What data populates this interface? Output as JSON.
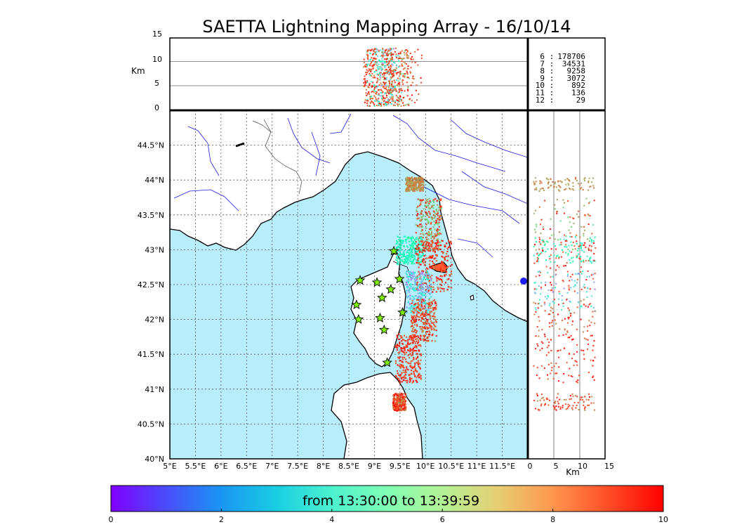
{
  "chart_data": {
    "type": "scatter",
    "title": "SAETTA Lightning Mapping Array - 16/10/14",
    "map": {
      "lon_ticks": [
        "5°E",
        "5.5°E",
        "6°E",
        "6.5°E",
        "7°E",
        "7.5°E",
        "8°E",
        "8.5°E",
        "9°E",
        "9.5°E",
        "10°E",
        "10.5°E",
        "11°E",
        "11.5°E"
      ],
      "lat_ticks": [
        "40°N",
        "40.5°N",
        "41°N",
        "41.5°N",
        "42°N",
        "42.5°N",
        "43°N",
        "43.5°N",
        "44°N",
        "44.5°N"
      ],
      "lon_range": [
        5,
        12
      ],
      "lat_range": [
        40,
        45
      ],
      "stations": [
        {
          "lon": 9.38,
          "lat": 42.98
        },
        {
          "lon": 8.72,
          "lat": 42.56
        },
        {
          "lon": 9.05,
          "lat": 42.53
        },
        {
          "lon": 9.49,
          "lat": 42.58
        },
        {
          "lon": 9.32,
          "lat": 42.43
        },
        {
          "lon": 9.15,
          "lat": 42.31
        },
        {
          "lon": 8.65,
          "lat": 42.21
        },
        {
          "lon": 8.69,
          "lat": 42.0
        },
        {
          "lon": 9.11,
          "lat": 42.02
        },
        {
          "lon": 9.55,
          "lat": 42.1
        },
        {
          "lon": 9.19,
          "lat": 41.85
        },
        {
          "lon": 9.25,
          "lat": 41.38
        }
      ],
      "clusters": [
        {
          "lon": [
            9.6,
            9.95
          ],
          "lat": [
            43.85,
            44.05
          ],
          "c": [
            7.6,
            8.6
          ]
        },
        {
          "lon": [
            9.8,
            10.3
          ],
          "lat": [
            43.0,
            43.75
          ],
          "c": [
            6.5,
            9.8
          ]
        },
        {
          "lon": [
            9.4,
            9.95
          ],
          "lat": [
            42.8,
            43.2
          ],
          "c": [
            3.5,
            6.0
          ]
        },
        {
          "lon": [
            9.8,
            10.5
          ],
          "lat": [
            42.4,
            43.15
          ],
          "c": [
            8.5,
            10
          ]
        },
        {
          "lon": [
            9.6,
            10.1
          ],
          "lat": [
            42.1,
            42.7
          ],
          "c": [
            1.5,
            4.5
          ]
        },
        {
          "lon": [
            9.7,
            10.2
          ],
          "lat": [
            41.7,
            42.3
          ],
          "c": [
            8.0,
            10
          ]
        },
        {
          "lon": [
            9.4,
            9.9
          ],
          "lat": [
            41.1,
            41.8
          ],
          "c": [
            8.5,
            10
          ]
        },
        {
          "lon": [
            9.35,
            9.6
          ],
          "lat": [
            40.7,
            40.95
          ],
          "c": [
            8.0,
            10
          ]
        }
      ]
    },
    "height_panel": {
      "ylabel": "Km",
      "yticks": [
        "0",
        "5",
        "10",
        "15"
      ],
      "ylim": [
        0,
        15
      ]
    },
    "lat_height_panel": {
      "xlabel": "Km",
      "xticks": [
        "0",
        "5",
        "10",
        "15"
      ],
      "xlim": [
        0,
        15
      ]
    },
    "counts": {
      "rows": [
        {
          "n": "6",
          "count": "178706"
        },
        {
          "n": "7",
          "count": "34531"
        },
        {
          "n": "8",
          "count": "9258"
        },
        {
          "n": "9",
          "count": "3072"
        },
        {
          "n": "10",
          "count": "892"
        },
        {
          "n": "11",
          "count": "136"
        },
        {
          "n": "12",
          "count": "29"
        }
      ],
      "highlight_color": "#ff0000"
    },
    "colorbar": {
      "label": "from 13:30:00 to 13:39:59",
      "ticks": [
        "0",
        "2",
        "4",
        "6",
        "8",
        "10"
      ],
      "range": [
        0,
        10
      ],
      "colormap": "rainbow"
    },
    "colors": {
      "sea": "#b8edfb",
      "land": "#ffffff",
      "rivers": "#0000cc",
      "station_fill": "#7ff000"
    }
  }
}
